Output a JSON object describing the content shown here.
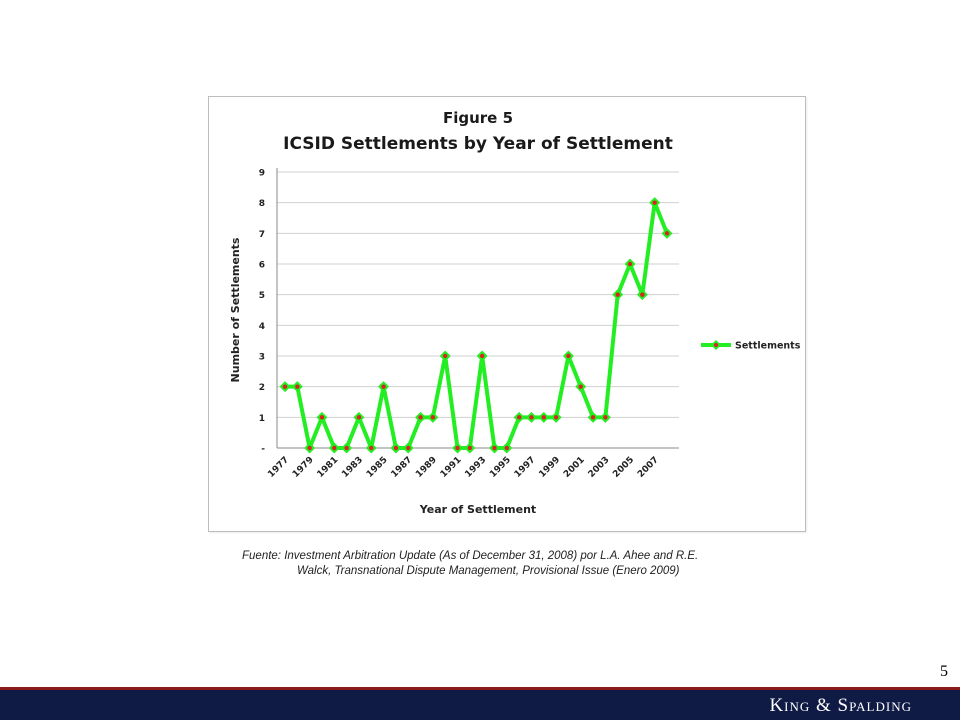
{
  "chart_data": {
    "type": "line",
    "title": "Figure 5",
    "subtitle": "ICSID Settlements by Year of Settlement",
    "xlabel": "Year of Settlement",
    "ylabel": "Number of Settlements",
    "x": [
      1977,
      1978,
      1979,
      1980,
      1981,
      1982,
      1983,
      1984,
      1985,
      1986,
      1987,
      1988,
      1989,
      1990,
      1991,
      1992,
      1993,
      1994,
      1995,
      1996,
      1997,
      1998,
      1999,
      2000,
      2001,
      2002,
      2003,
      2004,
      2005,
      2006,
      2007,
      2008
    ],
    "x_tick_labels": [
      "1977",
      "1979",
      "1981",
      "1983",
      "1985",
      "1987",
      "1989",
      "1991",
      "1993",
      "1995",
      "1997",
      "1999",
      "2001",
      "2003",
      "2005",
      "2007"
    ],
    "series": [
      {
        "name": "Settlements",
        "values": [
          2,
          2,
          0,
          1,
          0,
          0,
          1,
          0,
          2,
          0,
          0,
          1,
          1,
          3,
          0,
          0,
          3,
          0,
          0,
          1,
          1,
          1,
          1,
          3,
          2,
          1,
          1,
          5,
          6,
          5,
          8,
          7
        ],
        "line_color": "#22ee22",
        "marker_color": "#dd2222"
      }
    ],
    "y_tick_labels": [
      "-",
      "1",
      "2",
      "3",
      "4",
      "5",
      "6",
      "7",
      "8",
      "9"
    ],
    "ylim": [
      0,
      9
    ],
    "grid": true,
    "legend_position": "right"
  },
  "source": {
    "line1": "Fuente:  Investment Arbitration Update (As of December 31, 2008) por L.A. Ahee and R.E.",
    "line2": "Walck, Transnational Dispute Management,  Provisional Issue (Enero 2009)"
  },
  "page_number": "5",
  "footer": {
    "brand": "King & Spalding"
  },
  "colors": {
    "footer_bg": "#0f1a45",
    "footer_accent": "#8b1a1a"
  }
}
